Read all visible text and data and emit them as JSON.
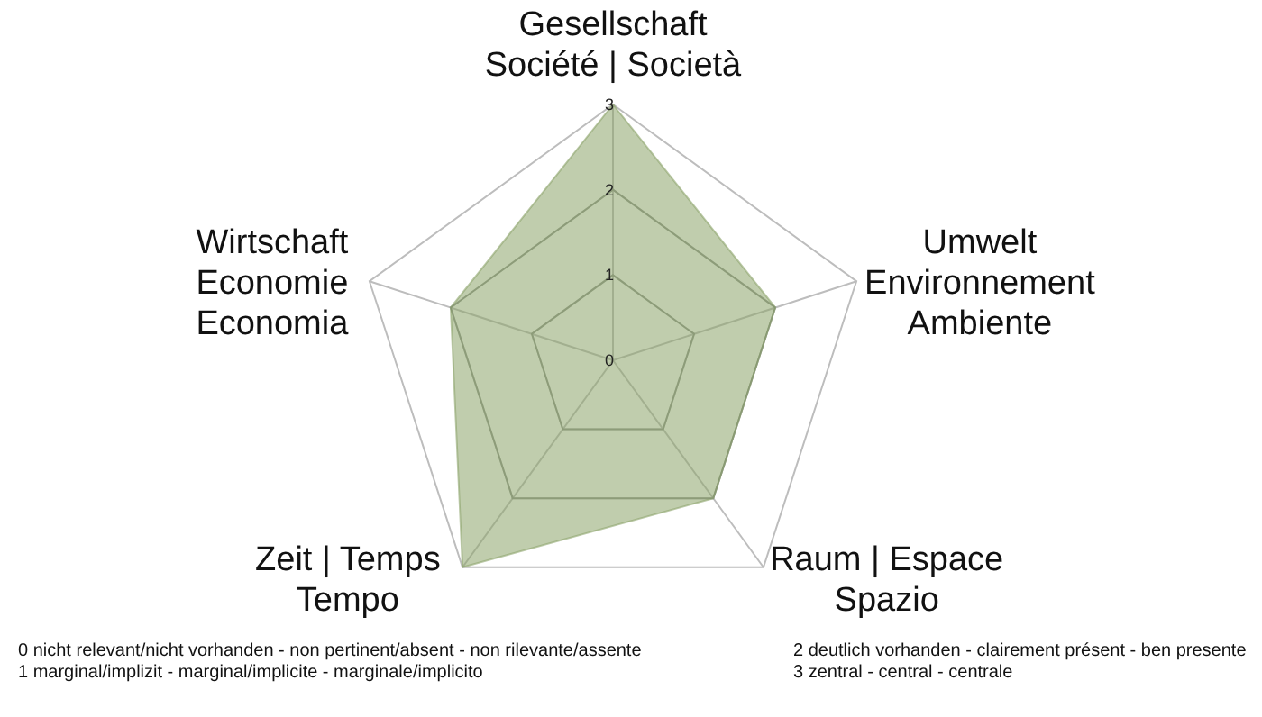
{
  "chart_data": {
    "type": "radar",
    "categories": [
      "Gesellschaft\nSociété | Società",
      "Umwelt\nEnvironnement\nAmbiente",
      "Raum | Espace\nSpazio",
      "Zeit | Temps\nTempo",
      "Wirtschaft\nEconomie\nEconomia"
    ],
    "series": [
      {
        "color": "#8ca46a",
        "values": [
          3,
          2,
          2,
          3,
          2
        ]
      }
    ],
    "ylim": [
      0,
      3
    ],
    "yticks": [
      0,
      1,
      2,
      3
    ],
    "grid": true,
    "annotations": [
      "0 nicht relevant/nicht vorhanden -  non pertinent/absent - non rilevante/assente",
      "1 marginal/implizit - marginal/implicite - marginale/implicito",
      "2 deutlich vorhanden - clairement présent - ben presente",
      "3 zentral -  central - centrale"
    ]
  }
}
